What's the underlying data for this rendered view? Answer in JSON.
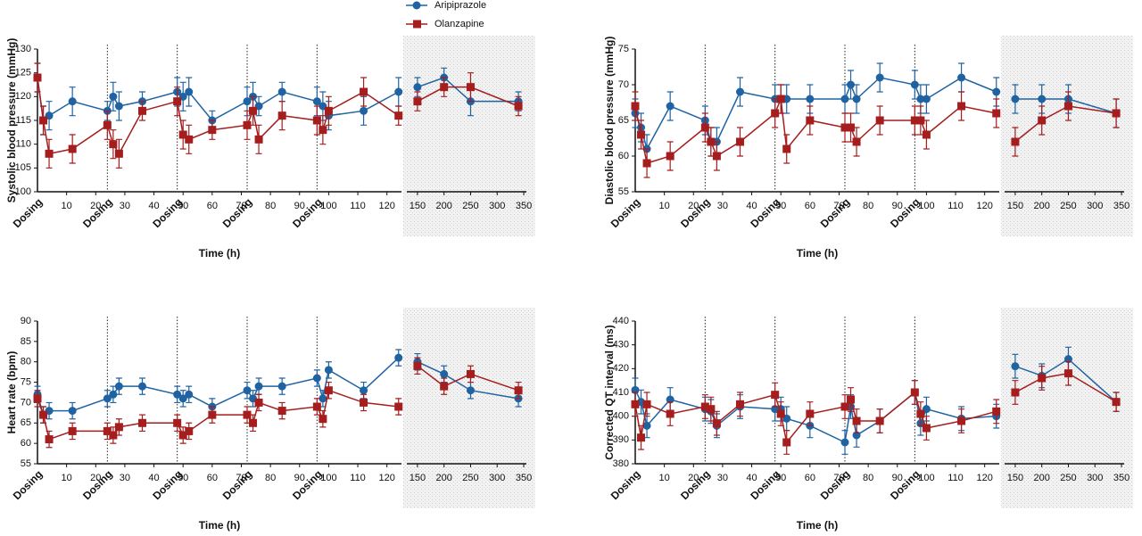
{
  "chart_data": [
    {
      "type": "line",
      "y_label": "Systolic blood pressure (mmHg)",
      "x_label": "Time (h)",
      "ylim": [
        100,
        130
      ],
      "yticks": [
        100,
        105,
        110,
        115,
        120,
        125,
        130
      ],
      "x_segments": [
        {
          "xlim": [
            0,
            125
          ],
          "xticks": [
            10,
            20,
            30,
            40,
            50,
            60,
            70,
            80,
            90,
            100,
            110,
            120
          ]
        },
        {
          "xlim": [
            130,
            355
          ],
          "xticks": [
            150,
            200,
            250,
            300,
            350
          ]
        }
      ],
      "dosing": {
        "label": "Dosing",
        "times": [
          0,
          24,
          48,
          72,
          96
        ]
      },
      "x": [
        0,
        2,
        4,
        12,
        24,
        26,
        28,
        36,
        48,
        50,
        52,
        60,
        72,
        74,
        76,
        84,
        96,
        98,
        100,
        112,
        124,
        150,
        200,
        250,
        340
      ],
      "series": [
        {
          "name": "Aripiprazole",
          "color": "#1f63a3",
          "marker": "circle",
          "values": [
            124,
            115,
            116,
            119,
            117,
            120,
            118,
            119,
            121,
            120,
            121,
            115,
            119,
            120,
            118,
            121,
            119,
            118,
            116,
            117,
            121,
            122,
            124,
            119,
            119
          ],
          "errors": [
            3,
            3,
            3,
            3,
            2,
            3,
            3,
            2,
            3,
            3,
            3,
            2,
            3,
            3,
            2,
            2,
            3,
            3,
            3,
            3,
            3,
            2,
            2,
            3,
            2
          ]
        },
        {
          "name": "Olanzapine",
          "color": "#a51d1d",
          "marker": "square",
          "values": [
            124,
            115,
            108,
            109,
            114,
            110,
            108,
            117,
            119,
            112,
            111,
            113,
            114,
            117,
            111,
            116,
            115,
            113,
            117,
            121,
            116,
            119,
            122,
            122,
            118
          ],
          "errors": [
            3,
            3,
            3,
            3,
            3,
            3,
            3,
            2,
            3,
            3,
            3,
            2,
            3,
            3,
            3,
            3,
            3,
            3,
            3,
            3,
            2,
            2,
            2,
            3,
            2
          ]
        }
      ]
    },
    {
      "type": "line",
      "y_label": "Diastolic blood pressure (mmHg)",
      "x_label": "Time (h)",
      "ylim": [
        55,
        75
      ],
      "yticks": [
        55,
        60,
        65,
        70,
        75
      ],
      "x_segments": [
        {
          "xlim": [
            0,
            125
          ],
          "xticks": [
            10,
            20,
            30,
            40,
            50,
            60,
            70,
            80,
            90,
            100,
            110,
            120
          ]
        },
        {
          "xlim": [
            130,
            355
          ],
          "xticks": [
            150,
            200,
            250,
            300,
            350
          ]
        }
      ],
      "dosing": {
        "label": "Dosing",
        "times": [
          0,
          24,
          48,
          72,
          96
        ]
      },
      "x": [
        0,
        2,
        4,
        12,
        24,
        26,
        28,
        36,
        48,
        50,
        52,
        60,
        72,
        74,
        76,
        84,
        96,
        98,
        100,
        112,
        124,
        150,
        200,
        250,
        340
      ],
      "series": [
        {
          "name": "Aripiprazole",
          "color": "#1f63a3",
          "marker": "circle",
          "values": [
            66,
            64,
            61,
            67,
            65,
            62,
            62,
            69,
            68,
            68,
            68,
            68,
            68,
            70,
            68,
            71,
            70,
            68,
            68,
            71,
            69,
            68,
            68,
            68,
            66
          ],
          "errors": [
            2,
            2,
            2,
            2,
            2,
            2,
            2,
            2,
            2,
            2,
            2,
            2,
            2,
            2,
            2,
            2,
            2,
            2,
            2,
            2,
            2,
            2,
            2,
            2,
            2
          ]
        },
        {
          "name": "Olanzapine",
          "color": "#a51d1d",
          "marker": "square",
          "values": [
            67,
            63,
            59,
            60,
            64,
            62,
            60,
            62,
            66,
            68,
            61,
            65,
            64,
            64,
            62,
            65,
            65,
            65,
            63,
            67,
            66,
            62,
            65,
            67,
            66
          ],
          "errors": [
            2,
            2,
            2,
            2,
            2,
            2,
            2,
            2,
            2,
            2,
            2,
            2,
            2,
            2,
            2,
            2,
            2,
            2,
            2,
            2,
            2,
            2,
            2,
            2,
            2
          ]
        }
      ]
    },
    {
      "type": "line",
      "y_label": "Heart rate (bpm)",
      "x_label": "Time (h)",
      "ylim": [
        55,
        90
      ],
      "yticks": [
        55,
        60,
        65,
        70,
        75,
        80,
        85,
        90
      ],
      "x_segments": [
        {
          "xlim": [
            0,
            125
          ],
          "xticks": [
            10,
            20,
            30,
            40,
            50,
            60,
            70,
            80,
            90,
            100,
            110,
            120
          ]
        },
        {
          "xlim": [
            130,
            355
          ],
          "xticks": [
            150,
            200,
            250,
            300,
            350
          ]
        }
      ],
      "dosing": {
        "label": "Dosing",
        "times": [
          0,
          24,
          48,
          72,
          96
        ]
      },
      "x": [
        0,
        2,
        4,
        12,
        24,
        26,
        28,
        36,
        48,
        50,
        52,
        60,
        72,
        74,
        76,
        84,
        96,
        98,
        100,
        112,
        124,
        150,
        200,
        250,
        340
      ],
      "series": [
        {
          "name": "Aripiprazole",
          "color": "#1f63a3",
          "marker": "circle",
          "values": [
            72,
            67,
            68,
            68,
            71,
            72,
            74,
            74,
            72,
            71,
            72,
            69,
            73,
            71,
            74,
            74,
            76,
            71,
            78,
            73,
            81,
            80,
            77,
            73,
            71
          ],
          "errors": [
            2,
            2,
            2,
            2,
            2,
            2,
            2,
            2,
            2,
            2,
            2,
            2,
            2,
            2,
            2,
            2,
            2,
            2,
            2,
            2,
            2,
            2,
            2,
            2,
            2
          ]
        },
        {
          "name": "Olanzapine",
          "color": "#a51d1d",
          "marker": "square",
          "values": [
            71,
            67,
            61,
            63,
            63,
            62,
            64,
            65,
            65,
            62,
            63,
            67,
            67,
            65,
            70,
            68,
            69,
            66,
            73,
            70,
            69,
            79,
            74,
            77,
            73
          ],
          "errors": [
            2,
            2,
            2,
            2,
            2,
            2,
            2,
            2,
            2,
            2,
            2,
            2,
            2,
            2,
            2,
            2,
            2,
            2,
            2,
            2,
            2,
            2,
            2,
            2,
            2
          ]
        }
      ]
    },
    {
      "type": "line",
      "y_label": "Corrected QT interval (ms)",
      "x_label": "Time (h)",
      "ylim": [
        380,
        440
      ],
      "yticks": [
        380,
        390,
        400,
        410,
        420,
        430,
        440
      ],
      "x_segments": [
        {
          "xlim": [
            0,
            125
          ],
          "xticks": [
            10,
            20,
            30,
            40,
            50,
            60,
            70,
            80,
            90,
            100,
            110,
            120
          ]
        },
        {
          "xlim": [
            130,
            355
          ],
          "xticks": [
            150,
            200,
            250,
            300,
            350
          ]
        }
      ],
      "dosing": {
        "label": "Dosing",
        "times": [
          0,
          24,
          48,
          72,
          96
        ]
      },
      "x": [
        0,
        2,
        4,
        12,
        24,
        26,
        28,
        36,
        48,
        50,
        52,
        60,
        72,
        74,
        76,
        84,
        96,
        98,
        100,
        112,
        124,
        150,
        200,
        250,
        340
      ],
      "series": [
        {
          "name": "Aripiprazole",
          "color": "#1f63a3",
          "marker": "circle",
          "values": [
            411,
            406,
            396,
            407,
            403,
            402,
            396,
            404,
            403,
            403,
            399,
            396,
            389,
            404,
            392,
            398,
            410,
            397,
            403,
            399,
            400,
            421,
            417,
            424,
            406
          ],
          "errors": [
            5,
            5,
            5,
            5,
            5,
            5,
            5,
            5,
            5,
            5,
            5,
            5,
            5,
            5,
            5,
            5,
            5,
            5,
            5,
            5,
            5,
            5,
            5,
            5,
            4
          ]
        },
        {
          "name": "Olanzapine",
          "color": "#a51d1d",
          "marker": "square",
          "values": [
            405,
            391,
            405,
            401,
            404,
            403,
            397,
            405,
            409,
            401,
            389,
            401,
            404,
            407,
            398,
            398,
            410,
            401,
            395,
            398,
            402,
            410,
            416,
            418,
            406
          ],
          "errors": [
            5,
            5,
            5,
            5,
            5,
            5,
            5,
            5,
            5,
            5,
            5,
            5,
            5,
            5,
            5,
            5,
            5,
            5,
            5,
            5,
            5,
            5,
            5,
            5,
            4
          ]
        }
      ]
    }
  ]
}
